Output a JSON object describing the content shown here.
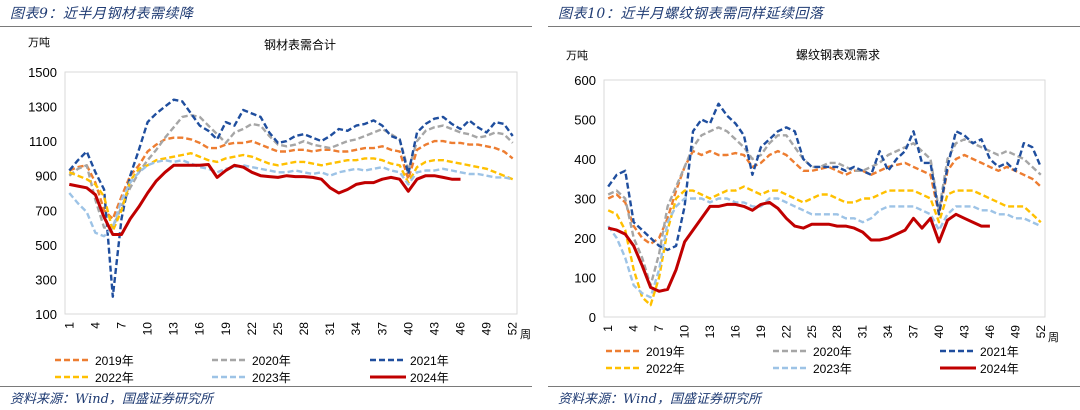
{
  "figures": [
    {
      "fig_title": "图表9：近半月钢材表需续降",
      "source": "资料来源：Wind，国盛证券研究所"
    },
    {
      "fig_title": "图表10：近半月螺纹钢表需同样延续回落",
      "source": "资料来源：Wind，国盛证券研究所"
    }
  ],
  "chart_data": [
    {
      "type": "line",
      "title": "钢材表需合计",
      "ylabel": "万吨",
      "xlabel": "周",
      "ylim": [
        100,
        1500
      ],
      "yticks": [
        100,
        300,
        500,
        700,
        900,
        1100,
        1300,
        1500
      ],
      "xticks": [
        1,
        4,
        7,
        10,
        13,
        16,
        19,
        22,
        25,
        28,
        31,
        34,
        37,
        40,
        43,
        46,
        49,
        52
      ],
      "legend": "bottom",
      "series": [
        {
          "name": "2019年",
          "color": "#ed7d31",
          "dash": "dashed",
          "values": [
            930,
            950,
            960,
            860,
            700,
            650,
            780,
            900,
            960,
            1040,
            1080,
            1110,
            1120,
            1120,
            1110,
            1090,
            1060,
            1060,
            1080,
            1090,
            1090,
            1100,
            1080,
            1060,
            1040,
            1040,
            1050,
            1050,
            1040,
            1050,
            1050,
            1040,
            1040,
            1050,
            1060,
            1060,
            1070,
            1050,
            1040,
            880,
            1050,
            1080,
            1100,
            1100,
            1090,
            1090,
            1080,
            1080,
            1070,
            1060,
            1040,
            1000
          ]
        },
        {
          "name": "2020年",
          "color": "#a6a6a6",
          "dash": "dashed",
          "values": [
            900,
            940,
            960,
            760,
            600,
            600,
            720,
            830,
            920,
            990,
            1050,
            1120,
            1180,
            1240,
            1250,
            1240,
            1190,
            1140,
            1090,
            1150,
            1170,
            1200,
            1190,
            1130,
            1080,
            1070,
            1080,
            1100,
            1080,
            1070,
            1060,
            1080,
            1100,
            1110,
            1130,
            1150,
            1170,
            1140,
            1110,
            930,
            1100,
            1160,
            1180,
            1190,
            1170,
            1150,
            1140,
            1120,
            1130,
            1150,
            1140,
            1090
          ]
        },
        {
          "name": "2021年",
          "color": "#1f4e9e",
          "dash": "dashed",
          "values": [
            930,
            990,
            1040,
            920,
            820,
            200,
            650,
            900,
            1050,
            1210,
            1260,
            1300,
            1340,
            1330,
            1260,
            1190,
            1160,
            1110,
            1210,
            1190,
            1280,
            1260,
            1240,
            1150,
            1090,
            1100,
            1130,
            1140,
            1120,
            1100,
            1130,
            1170,
            1160,
            1190,
            1200,
            1220,
            1190,
            1130,
            1110,
            910,
            1150,
            1200,
            1230,
            1240,
            1200,
            1170,
            1220,
            1180,
            1150,
            1210,
            1200,
            1130
          ]
        },
        {
          "name": "2022年",
          "color": "#ffc000",
          "dash": "dashed",
          "values": [
            920,
            900,
            880,
            850,
            780,
            580,
            700,
            870,
            940,
            960,
            990,
            1000,
            1010,
            1020,
            1030,
            1010,
            990,
            980,
            1000,
            1010,
            1020,
            1010,
            990,
            970,
            960,
            970,
            980,
            980,
            970,
            960,
            970,
            980,
            990,
            990,
            1000,
            1000,
            990,
            970,
            960,
            860,
            950,
            980,
            990,
            990,
            980,
            970,
            960,
            950,
            940,
            920,
            900,
            880
          ]
        },
        {
          "name": "2023年",
          "color": "#9dc3e6",
          "dash": "dashed",
          "values": [
            800,
            740,
            690,
            570,
            550,
            600,
            760,
            860,
            920,
            960,
            980,
            990,
            980,
            990,
            970,
            950,
            940,
            920,
            940,
            950,
            960,
            950,
            940,
            930,
            920,
            920,
            930,
            920,
            910,
            920,
            900,
            920,
            930,
            940,
            930,
            940,
            950,
            930,
            920,
            850,
            920,
            930,
            930,
            940,
            930,
            920,
            910,
            910,
            900,
            890,
            890,
            880
          ]
        },
        {
          "name": "2024年",
          "color": "#c00000",
          "dash": "solid",
          "values": [
            850,
            840,
            830,
            790,
            660,
            560,
            560,
            650,
            720,
            800,
            870,
            920,
            960,
            960,
            960,
            960,
            965,
            890,
            930,
            960,
            950,
            920,
            900,
            895,
            890,
            900,
            895,
            895,
            890,
            880,
            830,
            800,
            820,
            850,
            860,
            860,
            880,
            890,
            880,
            810,
            880,
            900,
            900,
            890,
            880,
            880,
            null,
            null,
            null,
            null,
            null,
            null
          ]
        }
      ]
    },
    {
      "type": "line",
      "title": "螺纹钢表观需求",
      "ylabel": "万吨",
      "xlabel": "周",
      "ylim": [
        0,
        600
      ],
      "yticks": [
        0,
        100,
        200,
        300,
        400,
        500,
        600
      ],
      "xticks": [
        1,
        4,
        7,
        10,
        13,
        16,
        19,
        22,
        25,
        28,
        31,
        34,
        37,
        40,
        43,
        46,
        49,
        52
      ],
      "legend": "bottom",
      "series": [
        {
          "name": "2019年",
          "color": "#ed7d31",
          "dash": "dashed",
          "values": [
            300,
            310,
            290,
            230,
            200,
            185,
            200,
            250,
            320,
            380,
            420,
            410,
            420,
            410,
            410,
            415,
            410,
            380,
            390,
            410,
            420,
            410,
            390,
            370,
            370,
            375,
            380,
            370,
            360,
            370,
            370,
            360,
            370,
            380,
            385,
            390,
            380,
            370,
            360,
            260,
            370,
            400,
            410,
            400,
            390,
            380,
            370,
            380,
            370,
            360,
            350,
            330
          ]
        },
        {
          "name": "2020年",
          "color": "#a6a6a6",
          "dash": "dashed",
          "values": [
            310,
            320,
            300,
            200,
            150,
            80,
            160,
            280,
            330,
            380,
            430,
            460,
            470,
            480,
            470,
            450,
            430,
            400,
            410,
            440,
            460,
            460,
            430,
            400,
            380,
            380,
            390,
            390,
            380,
            370,
            370,
            380,
            390,
            410,
            420,
            430,
            440,
            420,
            400,
            270,
            400,
            440,
            450,
            440,
            430,
            420,
            410,
            420,
            410,
            400,
            380,
            360
          ]
        },
        {
          "name": "2021年",
          "color": "#1f4e9e",
          "dash": "dashed",
          "values": [
            330,
            360,
            370,
            240,
            220,
            200,
            180,
            170,
            180,
            280,
            470,
            500,
            490,
            540,
            510,
            490,
            460,
            360,
            430,
            450,
            470,
            480,
            470,
            400,
            380,
            380,
            380,
            380,
            370,
            380,
            370,
            360,
            420,
            370,
            400,
            420,
            470,
            390,
            390,
            260,
            380,
            470,
            460,
            440,
            450,
            400,
            380,
            390,
            370,
            440,
            430,
            380
          ]
        },
        {
          "name": "2022年",
          "color": "#ffc000",
          "dash": "dashed",
          "values": [
            270,
            260,
            220,
            120,
            50,
            30,
            100,
            220,
            300,
            320,
            320,
            310,
            300,
            310,
            320,
            320,
            330,
            320,
            310,
            320,
            320,
            310,
            300,
            290,
            300,
            310,
            310,
            300,
            290,
            290,
            300,
            300,
            310,
            320,
            320,
            320,
            320,
            310,
            300,
            240,
            310,
            320,
            320,
            320,
            310,
            300,
            290,
            280,
            280,
            280,
            260,
            240
          ]
        },
        {
          "name": "2023年",
          "color": "#9dc3e6",
          "dash": "dashed",
          "values": [
            230,
            200,
            150,
            80,
            60,
            50,
            120,
            240,
            280,
            300,
            300,
            300,
            290,
            300,
            300,
            290,
            290,
            280,
            280,
            300,
            300,
            290,
            280,
            270,
            260,
            260,
            260,
            260,
            250,
            250,
            240,
            250,
            270,
            280,
            280,
            280,
            280,
            270,
            260,
            220,
            260,
            280,
            280,
            280,
            270,
            270,
            260,
            260,
            250,
            250,
            240,
            230
          ]
        },
        {
          "name": "2024年",
          "color": "#c00000",
          "dash": "solid",
          "values": [
            225,
            220,
            210,
            180,
            130,
            75,
            65,
            70,
            120,
            190,
            220,
            250,
            280,
            280,
            285,
            285,
            280,
            270,
            285,
            290,
            275,
            250,
            230,
            225,
            235,
            235,
            235,
            230,
            230,
            225,
            215,
            195,
            195,
            200,
            210,
            220,
            250,
            225,
            250,
            190,
            245,
            260,
            250,
            240,
            230,
            230,
            null,
            null,
            null,
            null,
            null,
            null
          ]
        }
      ]
    }
  ]
}
